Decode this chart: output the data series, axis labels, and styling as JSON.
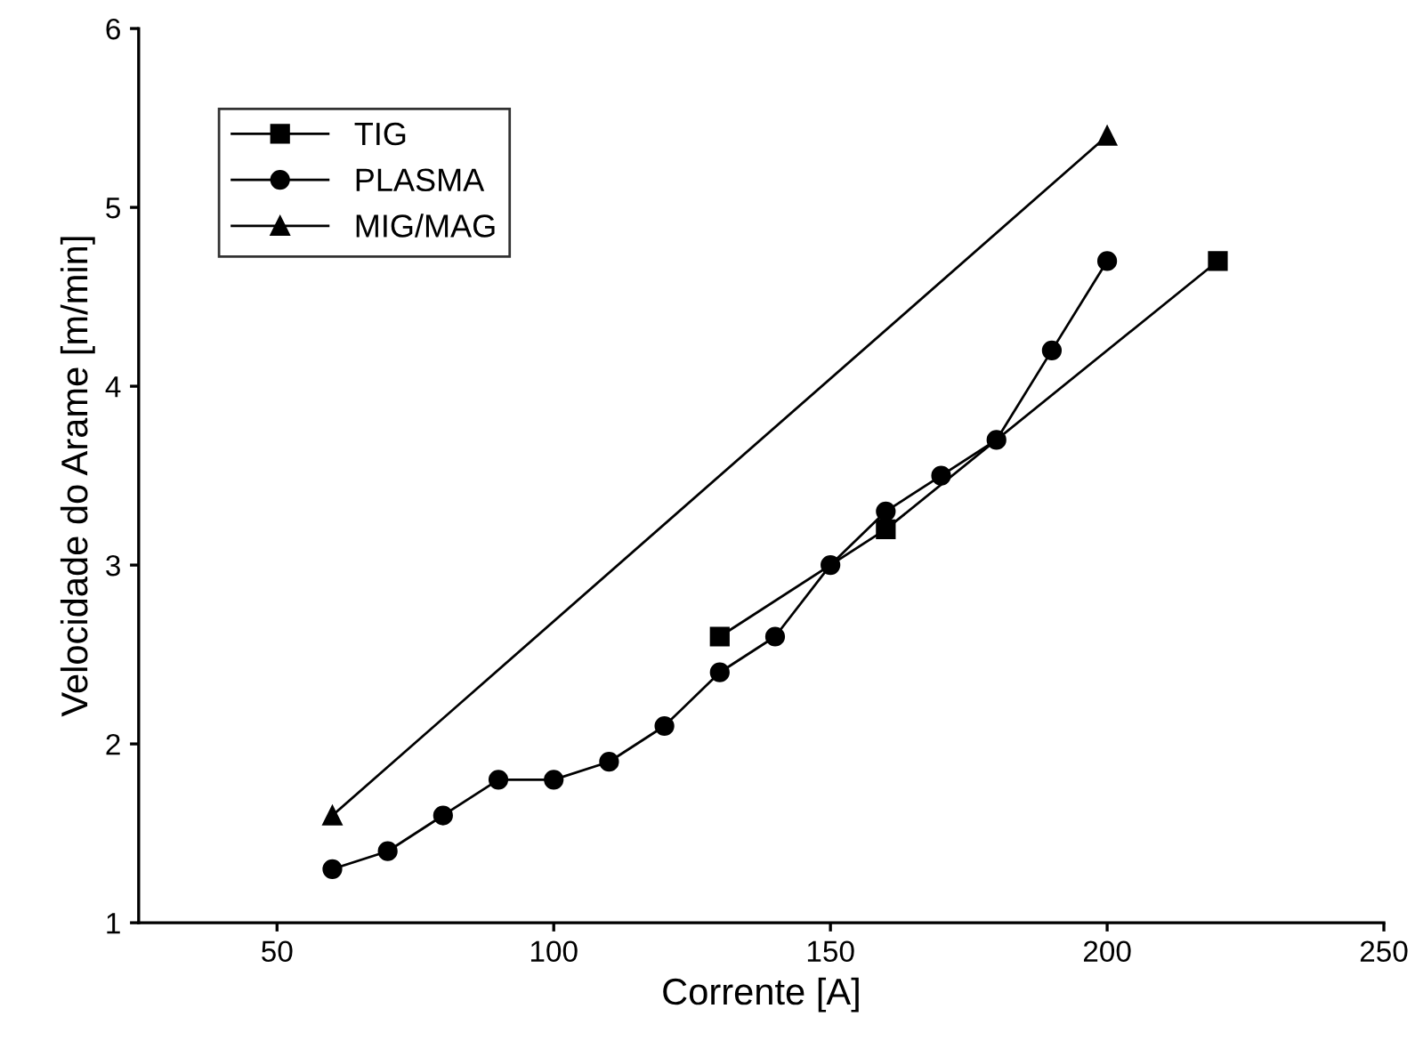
{
  "chart_data": {
    "type": "line",
    "xlabel": "Corrente [A]",
    "ylabel": "Velocidade do Arame [m/min]",
    "xlim": [
      25,
      250
    ],
    "xticks": [
      50,
      100,
      150,
      200,
      250
    ],
    "ylim": [
      1,
      6
    ],
    "yticks": [
      1,
      2,
      3,
      4,
      5,
      6
    ],
    "grid": false,
    "legend": "top left",
    "series": [
      {
        "name": "TIG",
        "color": "#000000",
        "marker": "square",
        "x": [
          130,
          160,
          220
        ],
        "values": [
          2.6,
          3.2,
          4.7
        ]
      },
      {
        "name": "PLASMA",
        "color": "#000000",
        "marker": "circle",
        "x": [
          60,
          70,
          80,
          90,
          100,
          110,
          120,
          130,
          140,
          150,
          160,
          170,
          180,
          190,
          200
        ],
        "values": [
          1.3,
          1.4,
          1.6,
          1.8,
          1.8,
          1.9,
          2.1,
          2.4,
          2.6,
          3.0,
          3.3,
          3.5,
          3.7,
          4.2,
          4.7
        ]
      },
      {
        "name": "MIG/MAG",
        "color": "#000000",
        "marker": "triangle",
        "x": [
          60,
          200
        ],
        "values": [
          1.6,
          5.4
        ]
      }
    ]
  }
}
